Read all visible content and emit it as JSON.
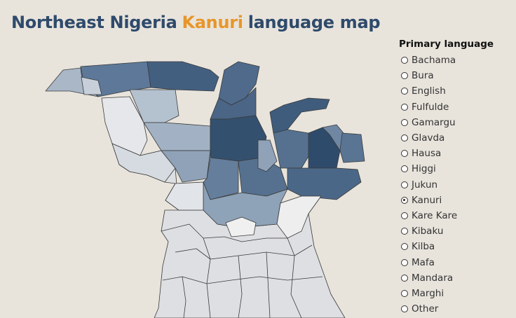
{
  "header": {
    "title_start": "Northeast Nigeria",
    "title_highlight": "Kanuri",
    "title_end": "language map"
  },
  "legend": {
    "title": "Primary language",
    "options": [
      "Bachama",
      "Bura",
      "English",
      "Fulfulde",
      "Gamargu",
      "Glavda",
      "Hausa",
      "Higgi",
      "Jukun",
      "Kanuri",
      "Kare Kare",
      "Kibaku",
      "Kilba",
      "Mafa",
      "Mandara",
      "Marghi",
      "Other"
    ],
    "selected": "Kanuri"
  }
}
